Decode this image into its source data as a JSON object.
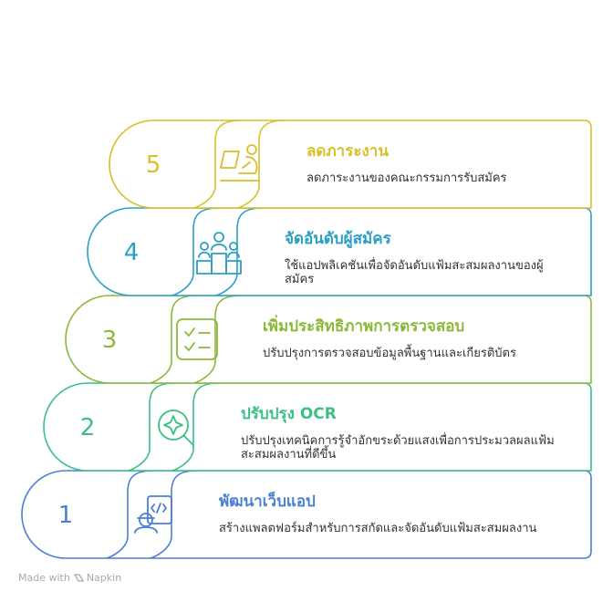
{
  "steps": [
    {
      "number": "1",
      "title": "พัฒนาเว็บแอป",
      "description": "สร้างแพลตฟอร์มสำหรับการสกัดและจัดอันดับแฟ้มสะสมผลงาน",
      "color": "#4a7fd6",
      "icon": "developer-icon"
    },
    {
      "number": "2",
      "title": "ปรับปรุง OCR",
      "description": "ปรับปรุงเทคนิคการรู้จำอักขระด้วยแสงเพื่อการประมวลผลแฟ้มสะสมผลงานที่ดีขึ้น",
      "color": "#3bbf85",
      "icon": "magnify-sparkle-icon"
    },
    {
      "number": "3",
      "title": "เพิ่มประสิทธิภาพการตรวจสอบ",
      "description": "ปรับปรุงการตรวจสอบข้อมูลพื้นฐานและเกียรติบัตร",
      "color": "#8cb83a",
      "icon": "checklist-icon"
    },
    {
      "number": "4",
      "title": "จัดอันดับผู้สมัคร",
      "description": "ใช้แอปพลิเคชันเพื่อจัดอันดับแฟ้มสะสมผลงานของผู้สมัคร",
      "color": "#2a9fc4",
      "icon": "podium-icon"
    },
    {
      "number": "5",
      "title": "ลดภาระงาน",
      "description": "ลดภาระงานของคณะกรรมการรับสมัคร",
      "color": "#d9bf2a",
      "icon": "relax-laptop-icon"
    }
  ],
  "footer": {
    "made_with": "Made with",
    "brand": "Napkin"
  }
}
